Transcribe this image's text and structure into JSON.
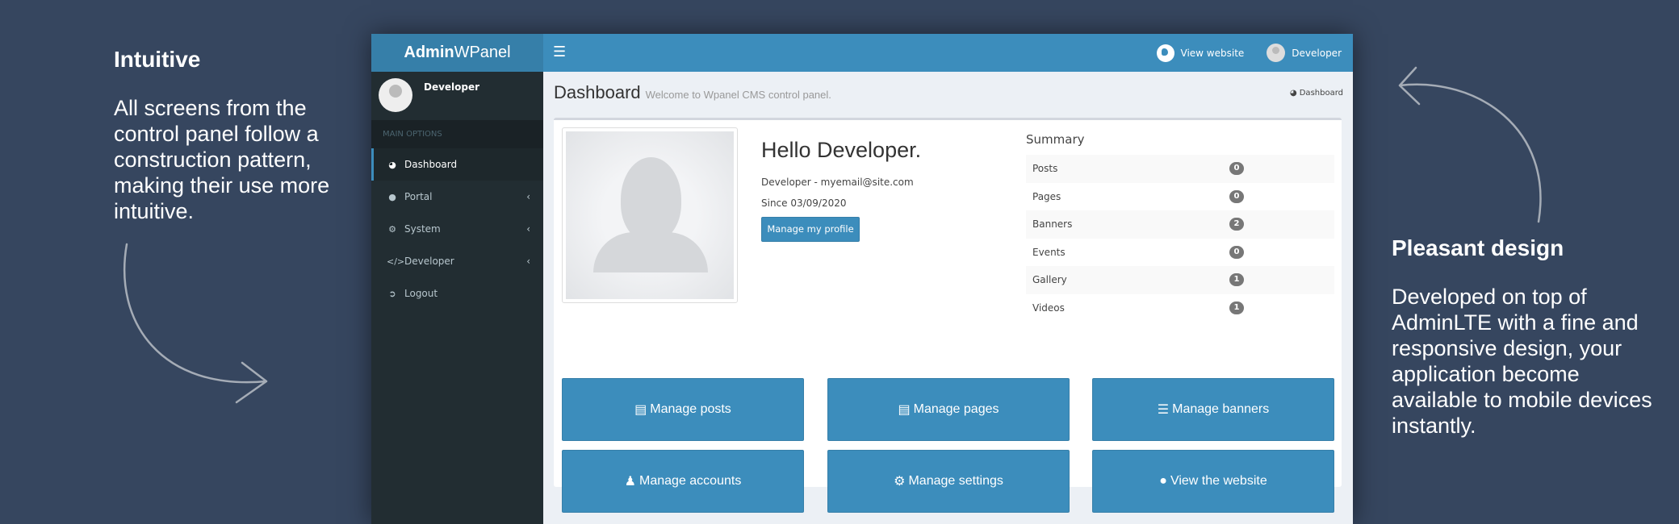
{
  "left_feature": {
    "title": "Intuitive",
    "text": "All screens from the control panel follow a construction pattern, making their use more intuitive."
  },
  "right_feature": {
    "title": "Pleasant design",
    "text": "Developed on top of AdminLTE with a fine and responsive design, your application become available to mobile devices instantly."
  },
  "app": {
    "logo_bold": "Admin",
    "logo_light": "WPanel",
    "brand_color": "#3c8dbc",
    "topbar": {
      "menu_icon": "hamburger-icon",
      "view_website": "View website",
      "user": "Developer"
    },
    "sidebar": {
      "user_name": "Developer",
      "header": "MAIN OPTIONS",
      "items": [
        {
          "label": "Dashboard",
          "icon": "dashboard-icon",
          "active": true
        },
        {
          "label": "Portal",
          "icon": "globe-icon",
          "expandable": true
        },
        {
          "label": "System",
          "icon": "cogs-icon",
          "expandable": true
        },
        {
          "label": "Developer",
          "icon": "code-icon",
          "expandable": true
        },
        {
          "label": "Logout",
          "icon": "sign-out-icon"
        }
      ]
    },
    "content": {
      "title": "Dashboard",
      "subtitle": "Welcome to Wpanel CMS control panel.",
      "breadcrumb": "Dashboard",
      "greeting": "Hello Developer.",
      "user_line": "Developer - myemail@site.com",
      "since": "Since 03/09/2020",
      "profile_button": "Manage my profile",
      "summary": {
        "title": "Summary",
        "rows": [
          {
            "label": "Posts",
            "count": "0"
          },
          {
            "label": "Pages",
            "count": "0"
          },
          {
            "label": "Banners",
            "count": "2"
          },
          {
            "label": "Events",
            "count": "0"
          },
          {
            "label": "Gallery",
            "count": "1"
          },
          {
            "label": "Videos",
            "count": "1"
          }
        ]
      },
      "buttons": [
        {
          "label": "Manage posts",
          "icon": "list-alt-icon"
        },
        {
          "label": "Manage pages",
          "icon": "list-alt-icon"
        },
        {
          "label": "Manage banners",
          "icon": "list-icon"
        },
        {
          "label": "Manage accounts",
          "icon": "user-icon"
        },
        {
          "label": "Manage settings",
          "icon": "cog-icon"
        },
        {
          "label": "View the website",
          "icon": "globe-icon"
        }
      ]
    }
  }
}
